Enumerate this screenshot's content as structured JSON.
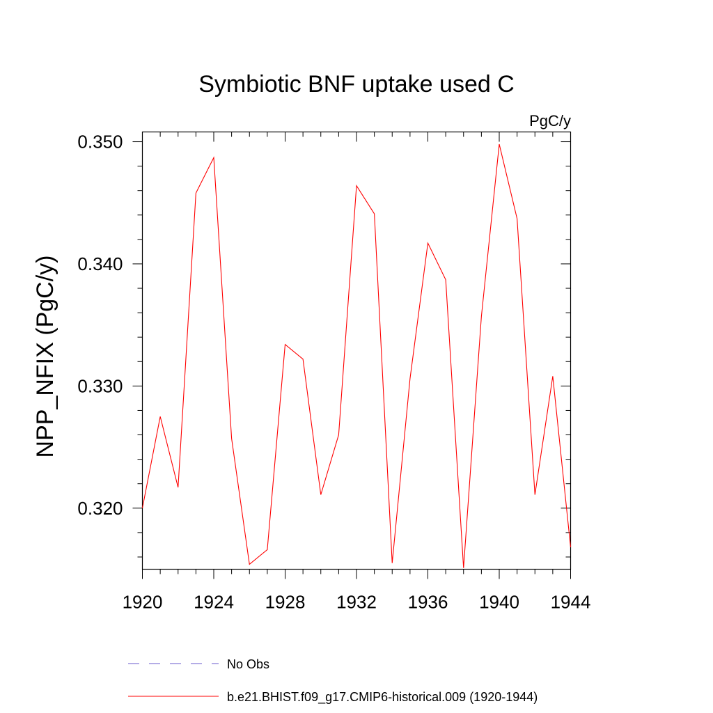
{
  "chart_data": {
    "type": "line",
    "title": "Symbiotic BNF uptake used C",
    "units": "PgC/y",
    "ylabel": "NPP_NFIX  (PgC/y)",
    "xlabel": "",
    "xlim": [
      1920,
      1944
    ],
    "ylim": [
      0.315,
      0.3508
    ],
    "x_ticks": [
      1920,
      1924,
      1928,
      1932,
      1936,
      1940,
      1944
    ],
    "y_ticks": [
      "0.320",
      "0.330",
      "0.340",
      "0.350"
    ],
    "grid": false,
    "legend_position": "bottom",
    "series": [
      {
        "name": "No Obs",
        "color": "#6a5acd",
        "dash": "dashed",
        "x": [],
        "values": []
      },
      {
        "name": "b.e21.BHIST.f09_g17.CMIP6-historical.009 (1920-1944)",
        "color": "#ff0000",
        "dash": "solid",
        "x": [
          1920,
          1921,
          1922,
          1923,
          1924,
          1925,
          1926,
          1927,
          1928,
          1929,
          1930,
          1931,
          1932,
          1933,
          1934,
          1935,
          1936,
          1937,
          1938,
          1939,
          1940,
          1941,
          1942,
          1943,
          1944
        ],
        "values": [
          0.32,
          0.3275,
          0.3217,
          0.3458,
          0.3487,
          0.3257,
          0.3154,
          0.3166,
          0.3334,
          0.3322,
          0.3211,
          0.326,
          0.3464,
          0.3441,
          0.3155,
          0.3306,
          0.3417,
          0.3387,
          0.3151,
          0.3357,
          0.3498,
          0.3437,
          0.3211,
          0.3308,
          0.3168
        ]
      }
    ]
  }
}
